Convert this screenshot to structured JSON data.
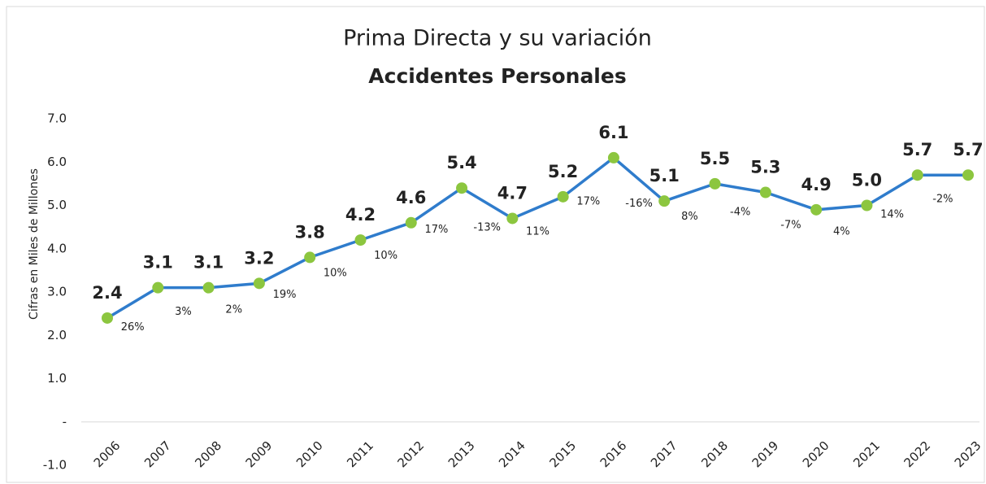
{
  "chart_data": {
    "type": "line",
    "title": "Prima Directa y su variación",
    "subtitle": "Accidentes Personales",
    "y_label": "Cifras en Miles de Millones",
    "categories": [
      "2006",
      "2007",
      "2008",
      "2009",
      "2010",
      "2011",
      "2012",
      "2013",
      "2014",
      "2015",
      "2016",
      "2017",
      "2018",
      "2019",
      "2020",
      "2021",
      "2022",
      "2023"
    ],
    "series": [
      {
        "name": "Prima Directa",
        "color": "#2f7ccc",
        "marker_color": "#8cc63f",
        "values": [
          2.4,
          3.1,
          3.1,
          3.2,
          3.8,
          4.2,
          4.6,
          5.4,
          4.7,
          5.2,
          6.1,
          5.1,
          5.5,
          5.3,
          4.9,
          5.0,
          5.7,
          5.7
        ],
        "value_labels": [
          "2.4",
          "3.1",
          "3.1",
          "3.2",
          "3.8",
          "4.2",
          "4.6",
          "5.4",
          "4.7",
          "5.2",
          "6.1",
          "5.1",
          "5.5",
          "5.3",
          "4.9",
          "5.0",
          "5.7",
          "5.7"
        ]
      }
    ],
    "variation": {
      "values": [
        null,
        26,
        3,
        2,
        19,
        10,
        10,
        17,
        -13,
        11,
        17,
        -16,
        8,
        -4,
        -7,
        4,
        14,
        -2
      ],
      "value_labels": [
        null,
        "26%",
        "3%",
        "2%",
        "19%",
        "10%",
        "10%",
        "17%",
        "-13%",
        "11%",
        "17%",
        "-16%",
        "8%",
        "-4%",
        "-7%",
        "4%",
        "14%",
        "-2%"
      ]
    },
    "ylim": [
      -1,
      7
    ],
    "yticks": [
      {
        "value": -1,
        "label": "-1.0"
      },
      {
        "value": 0,
        "label": "-"
      },
      {
        "value": 1,
        "label": "1.0"
      },
      {
        "value": 2,
        "label": "2.0"
      },
      {
        "value": 3,
        "label": "3.0"
      },
      {
        "value": 4,
        "label": "4.0"
      },
      {
        "value": 5,
        "label": "5.0"
      },
      {
        "value": 6,
        "label": "6.0"
      },
      {
        "value": 7,
        "label": "7.0"
      }
    ]
  }
}
